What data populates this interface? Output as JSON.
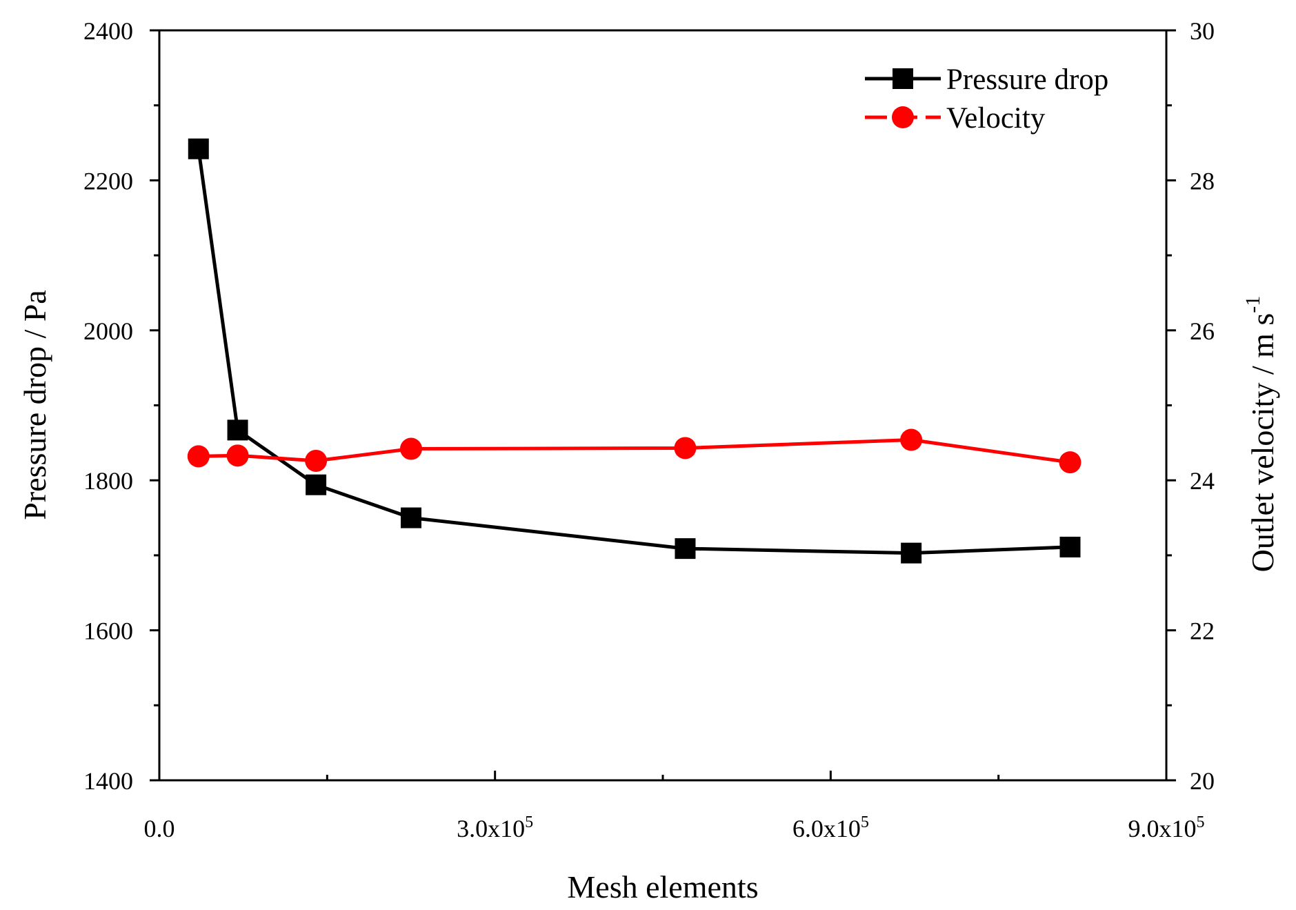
{
  "chart_data": {
    "type": "line",
    "title": "",
    "xlabel": "Mesh elements",
    "ylabel_left": "Pressure drop / Pa",
    "ylabel_right_base": "Outlet velocity / m s",
    "ylabel_right_sup": "-1",
    "xlim": [
      0,
      900000
    ],
    "ylim_left": [
      1400,
      2400
    ],
    "ylim_right": [
      20,
      30
    ],
    "grid": false,
    "legend_position": "top-right",
    "x_ticks": [
      {
        "value": 0,
        "mantissa": "0.0",
        "exponent": ""
      },
      {
        "value": 300000,
        "mantissa": "3.0x10",
        "exponent": "5"
      },
      {
        "value": 600000,
        "mantissa": "6.0x10",
        "exponent": "5"
      },
      {
        "value": 900000,
        "mantissa": "9.0x10",
        "exponent": "5"
      }
    ],
    "y_left_ticks": [
      1400,
      1600,
      1800,
      2000,
      2200,
      2400
    ],
    "y_right_ticks": [
      20,
      22,
      24,
      26,
      28,
      30
    ],
    "series": [
      {
        "name": "Pressure drop",
        "axis": "left",
        "color": "#000000",
        "marker": "square",
        "x": [
          35000,
          70000,
          140000,
          225000,
          470000,
          672000,
          814000
        ],
        "values": [
          2242,
          1867,
          1794,
          1750,
          1709,
          1703,
          1711
        ]
      },
      {
        "name": "Velocity",
        "axis": "right",
        "color": "#ff0000",
        "marker": "circle",
        "x": [
          35000,
          70000,
          140000,
          225000,
          470000,
          672000,
          814000
        ],
        "values": [
          24.32,
          24.33,
          24.26,
          24.42,
          24.43,
          24.54,
          24.24
        ]
      }
    ]
  }
}
